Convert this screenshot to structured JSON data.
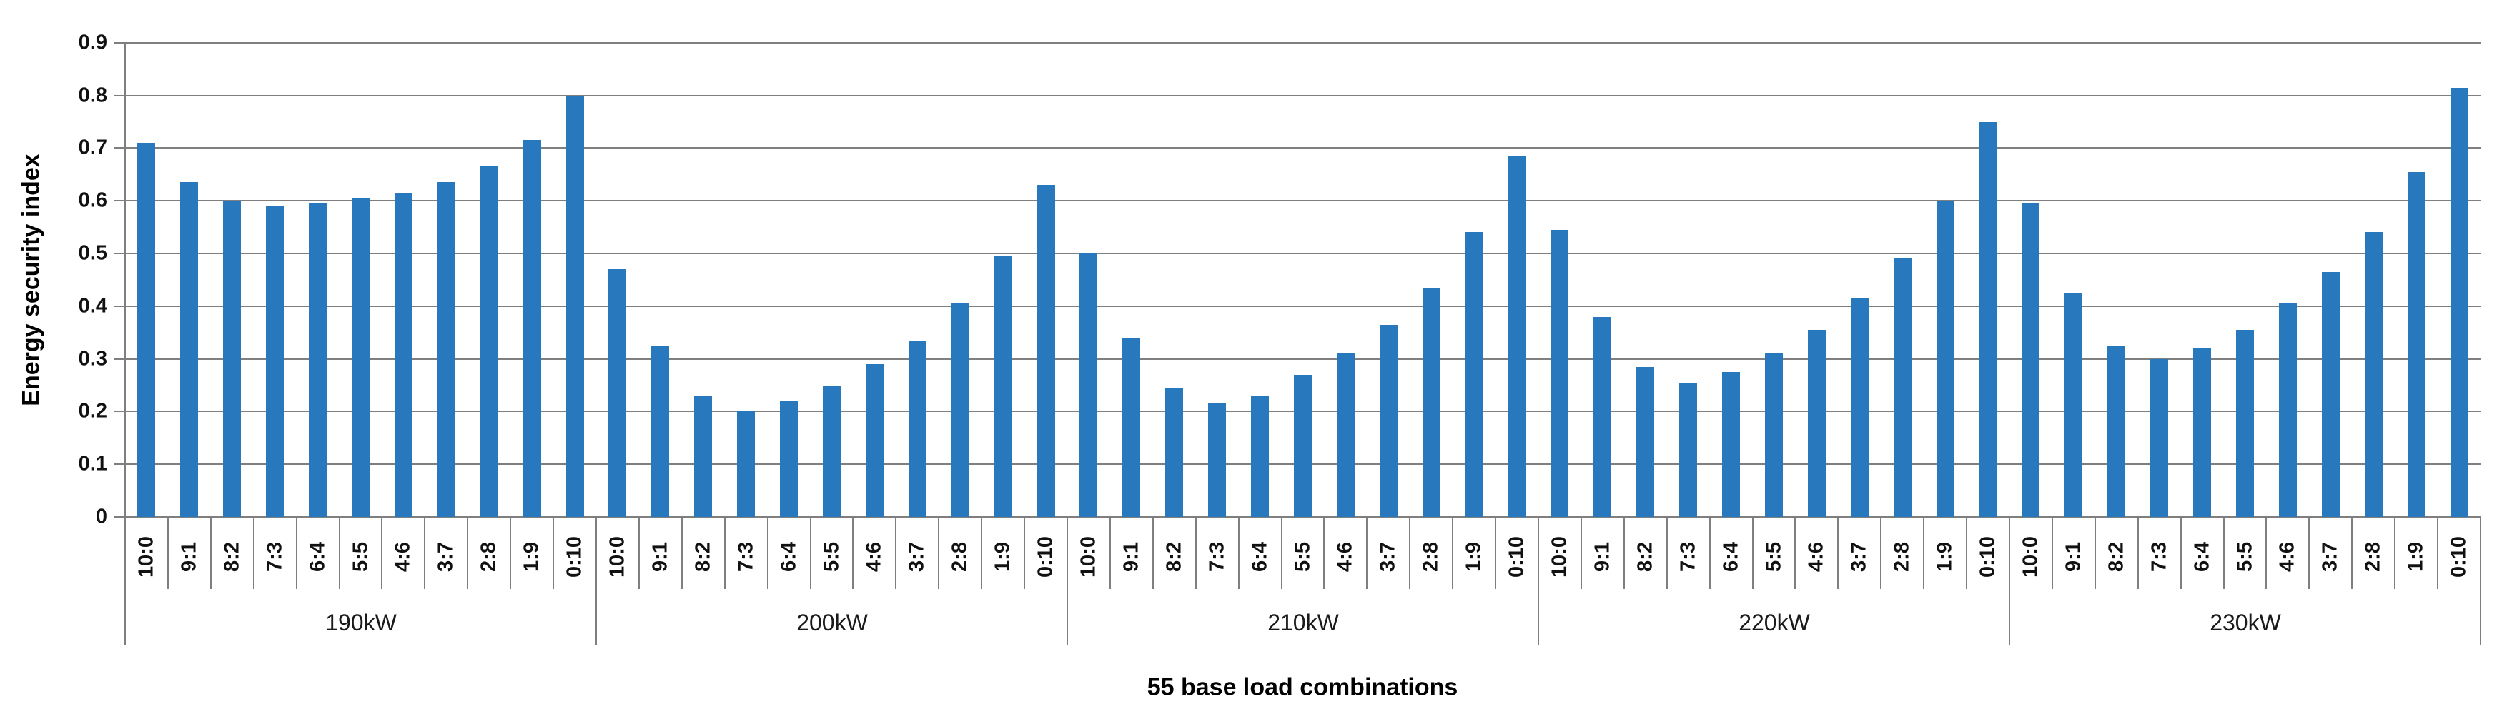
{
  "chart_data": {
    "type": "bar",
    "ylabel": "Energy security index",
    "xlabel": "55 base load combinations",
    "ylim": [
      0,
      0.9
    ],
    "ytick_step": 0.1,
    "ytick_labels": [
      "0",
      "0.1",
      "0.2",
      "0.3",
      "0.4",
      "0.5",
      "0.6",
      "0.7",
      "0.8",
      "0.9"
    ],
    "grid": true,
    "legend": "none",
    "bar_color": "#2878bd",
    "gridline_color": "#7f7f7f",
    "categories": [
      "10:0",
      "9:1",
      "8:2",
      "7:3",
      "6:4",
      "5:5",
      "4:6",
      "3:7",
      "2:8",
      "1:9",
      "0:10"
    ],
    "groups": [
      {
        "label": "190kW",
        "values": [
          0.71,
          0.635,
          0.6,
          0.59,
          0.595,
          0.605,
          0.615,
          0.635,
          0.665,
          0.715,
          0.8
        ]
      },
      {
        "label": "200kW",
        "values": [
          0.47,
          0.325,
          0.23,
          0.2,
          0.22,
          0.25,
          0.29,
          0.335,
          0.405,
          0.495,
          0.63
        ]
      },
      {
        "label": "210kW",
        "values": [
          0.5,
          0.34,
          0.245,
          0.215,
          0.23,
          0.27,
          0.31,
          0.365,
          0.435,
          0.54,
          0.685
        ]
      },
      {
        "label": "220kW",
        "values": [
          0.545,
          0.38,
          0.285,
          0.255,
          0.275,
          0.31,
          0.355,
          0.415,
          0.49,
          0.6,
          0.75
        ]
      },
      {
        "label": "230kW",
        "values": [
          0.595,
          0.425,
          0.325,
          0.3,
          0.32,
          0.355,
          0.405,
          0.465,
          0.54,
          0.655,
          0.815
        ]
      }
    ]
  }
}
